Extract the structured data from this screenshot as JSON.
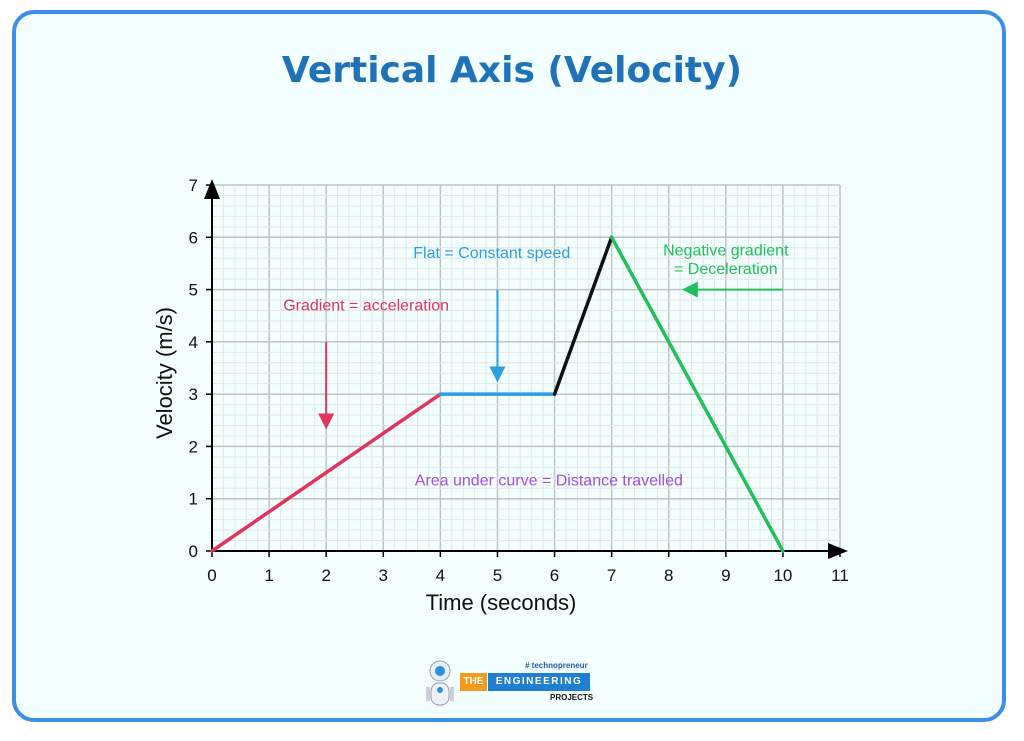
{
  "title": "Vertical Axis (Velocity)",
  "chart_data": {
    "type": "line",
    "xlabel": "Time (seconds)",
    "ylabel": "Velocity (m/s)",
    "xlim": [
      0,
      11
    ],
    "ylim": [
      0,
      7
    ],
    "xticks": [
      0,
      1,
      2,
      3,
      4,
      5,
      6,
      7,
      8,
      9,
      10,
      11
    ],
    "yticks": [
      0,
      1,
      2,
      3,
      4,
      5,
      6,
      7
    ],
    "grid": true,
    "minor_grid_step": 0.2,
    "segments": [
      {
        "points": [
          [
            0,
            0
          ],
          [
            4,
            3
          ]
        ],
        "color": "#e0345f"
      },
      {
        "points": [
          [
            4,
            3
          ],
          [
            6,
            3
          ]
        ],
        "color": "#2c9fe0"
      },
      {
        "points": [
          [
            6,
            3
          ],
          [
            7,
            6
          ]
        ],
        "color": "#111111"
      },
      {
        "points": [
          [
            7,
            6
          ],
          [
            10,
            0
          ]
        ],
        "color": "#22c05a"
      }
    ],
    "annotations": [
      {
        "text": "Gradient = acceleration",
        "color": "#e0345f",
        "x": 2.7,
        "y": 4.6,
        "arrow_from": [
          2,
          4
        ],
        "arrow_to": [
          2,
          2.4
        ]
      },
      {
        "text": "Flat = Constant speed",
        "color": "#2c9fe0",
        "x": 4.9,
        "y": 5.6,
        "arrow_from": [
          5,
          5
        ],
        "arrow_to": [
          5,
          3.3
        ]
      },
      {
        "text": "Negative gradient",
        "color": "#22c05a",
        "x": 9.0,
        "y": 5.65,
        "arrow_from": [
          10,
          5
        ],
        "arrow_to": [
          8.3,
          5
        ]
      },
      {
        "text": "= Deceleration",
        "color": "#22c05a",
        "x": 9.0,
        "y": 5.3
      },
      {
        "text": "Area under curve = Distance travelled",
        "color": "#a64de0",
        "x": 5.9,
        "y": 1.25
      }
    ]
  },
  "logo": {
    "tag": "# technopreneur",
    "the": "THE",
    "engineering": "ENGINEERING",
    "projects": "PROJECTS"
  }
}
